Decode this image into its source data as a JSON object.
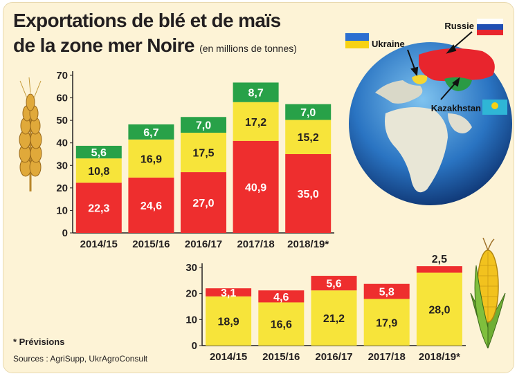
{
  "title": {
    "line1": "Exportations de blé et de maïs",
    "line2": "de la zone mer Noire",
    "unit_note": "(en millions de tonnes)"
  },
  "map": {
    "labels": [
      "Russie",
      "Ukraine",
      "Kazakhstan"
    ]
  },
  "footnotes": {
    "forecast": "* Prévisions",
    "sources": "Sources : AgriSupp, UkrAgroConsult"
  },
  "colors": {
    "red": "#ee2e2e",
    "yellow": "#f7e43a",
    "green": "#28a148",
    "background": "#fdf3d6",
    "ocean": "#2a74c2"
  },
  "chart_data": [
    {
      "type": "bar",
      "stacked": true,
      "categories": [
        "2014/15",
        "2015/16",
        "2016/17",
        "2017/18",
        "2018/19*"
      ],
      "series": [
        {
          "color": "red",
          "values": [
            22.3,
            24.6,
            27.0,
            40.9,
            35.0
          ],
          "labels": [
            "22,3",
            "24,6",
            "27,0",
            "40,9",
            "35,0"
          ]
        },
        {
          "color": "yellow",
          "values": [
            10.8,
            16.9,
            17.5,
            17.2,
            15.2
          ],
          "labels": [
            "10,8",
            "16,9",
            "17,5",
            "17,2",
            "15,2"
          ]
        },
        {
          "color": "green",
          "values": [
            5.6,
            6.7,
            7.0,
            8.7,
            7.0
          ],
          "labels": [
            "5,6",
            "6,7",
            "7,0",
            "8,7",
            "7,0"
          ]
        }
      ],
      "ylim": [
        0,
        70
      ],
      "yticks": [
        0,
        10,
        20,
        30,
        40,
        50,
        60,
        70
      ]
    },
    {
      "type": "bar",
      "stacked": true,
      "categories": [
        "2014/15",
        "2015/16",
        "2016/17",
        "2017/18",
        "2018/19*"
      ],
      "series": [
        {
          "color": "yellow",
          "values": [
            18.9,
            16.6,
            21.2,
            17.9,
            28.0
          ],
          "labels": [
            "18,9",
            "16,6",
            "21,2",
            "17,9",
            "28,0"
          ]
        },
        {
          "color": "red",
          "values": [
            3.1,
            4.6,
            5.6,
            5.8,
            2.5
          ],
          "labels": [
            "3,1",
            "4,6",
            "5,6",
            "5,8",
            "2,5"
          ]
        }
      ],
      "ylim": [
        0,
        30
      ],
      "yticks": [
        0,
        10,
        20,
        30
      ]
    }
  ]
}
